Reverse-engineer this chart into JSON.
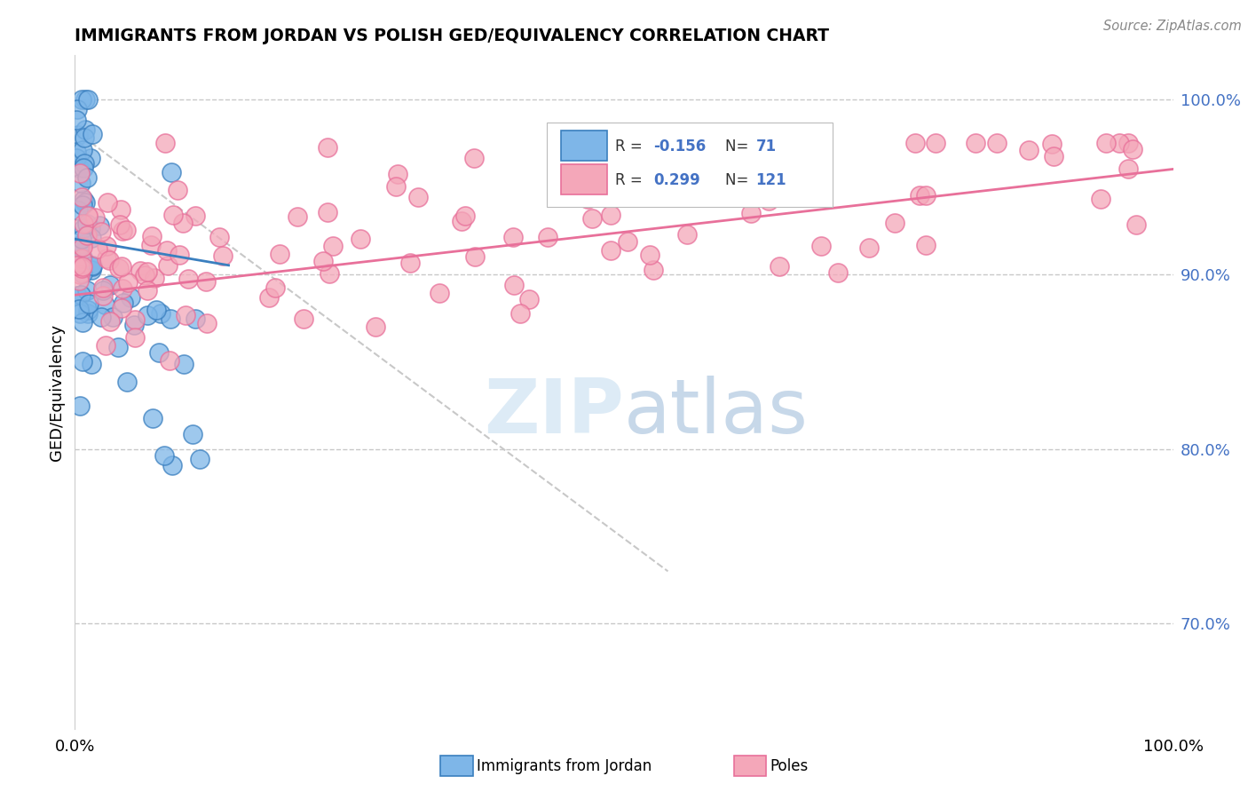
{
  "title": "IMMIGRANTS FROM JORDAN VS POLISH GED/EQUIVALENCY CORRELATION CHART",
  "source": "Source: ZipAtlas.com",
  "ylabel": "GED/Equivalency",
  "color_jordan": "#7EB6E8",
  "color_poles": "#F4A7B9",
  "color_jordan_line": "#3A7FBF",
  "color_poles_line": "#E8709A",
  "color_diagonal": "#C8C8C8",
  "background_color": "#FFFFFF",
  "legend_jordan_label": "Immigrants from Jordan",
  "legend_poles_label": "Poles"
}
